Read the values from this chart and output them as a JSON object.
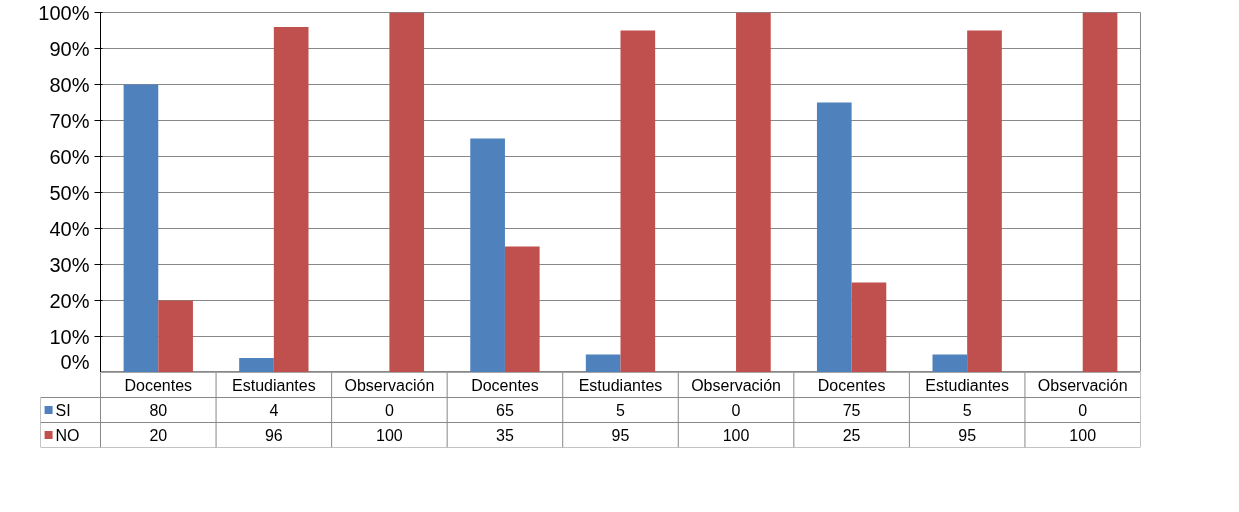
{
  "chart_data": {
    "type": "bar",
    "categories": [
      "Docentes",
      "Estudiantes",
      "Observación",
      "Docentes",
      "Estudiantes",
      "Observación",
      "Docentes",
      "Estudiantes",
      "Observación"
    ],
    "series": [
      {
        "name": "SI",
        "color": "#4f81bd",
        "values": [
          80,
          4,
          0,
          65,
          5,
          0,
          75,
          5,
          0
        ]
      },
      {
        "name": "NO",
        "color": "#c0504d",
        "values": [
          20,
          96,
          100,
          35,
          95,
          100,
          25,
          95,
          100
        ]
      }
    ],
    "ylim": [
      0,
      100
    ],
    "yticks": [
      {
        "value": 0,
        "label": "0%"
      },
      {
        "value": 10,
        "label": "10%"
      },
      {
        "value": 20,
        "label": "20%"
      },
      {
        "value": 30,
        "label": "30%"
      },
      {
        "value": 40,
        "label": "40%"
      },
      {
        "value": 50,
        "label": "50%"
      },
      {
        "value": 60,
        "label": "60%"
      },
      {
        "value": 70,
        "label": "70%"
      },
      {
        "value": 80,
        "label": "80%"
      },
      {
        "value": 90,
        "label": "90%"
      },
      {
        "value": 100,
        "label": "100%"
      }
    ],
    "grid": "y",
    "legend": "bottom",
    "data_labels": true
  }
}
